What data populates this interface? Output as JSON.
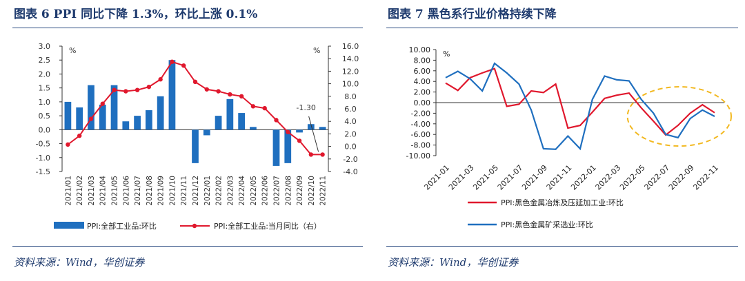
{
  "left": {
    "title": "图表 6   PPI 同比下降 1.3%，环比上涨 0.1%",
    "source": "资料来源：Wind，华创证券",
    "chart_data": {
      "type": "bar+line",
      "categories": [
        "2021/01",
        "2021/02",
        "2021/03",
        "2021/04",
        "2021/05",
        "2021/06",
        "2021/07",
        "2021/08",
        "2021/09",
        "2021/10",
        "2021/11",
        "2021/12",
        "2022/01",
        "2022/02",
        "2022/03",
        "2022/04",
        "2022/05",
        "2022/06",
        "2022/07",
        "2022/08",
        "2022/09",
        "2022/10",
        "2022/11"
      ],
      "left_unit": "%",
      "right_unit": "%",
      "ylim_left": [
        -1.5,
        3.0
      ],
      "yticks_left": [
        "3.0",
        "2.5",
        "2.0",
        "1.5",
        "1.0",
        "0.5",
        "0.0",
        "-0.5",
        "-1.0",
        "-1.5"
      ],
      "ylim_right": [
        -4.0,
        16.0
      ],
      "yticks_right": [
        "16.0",
        "14.0",
        "12.0",
        "10.0",
        "8.0",
        "6.0",
        "4.0",
        "2.0",
        "0.0",
        "-2.0",
        "-4.0"
      ],
      "series": [
        {
          "name": "PPI:全部工业品:环比",
          "type": "bar",
          "axis": "left",
          "color": "#1f6fbf",
          "values": [
            1.0,
            0.8,
            1.6,
            0.9,
            1.6,
            0.3,
            0.5,
            0.7,
            1.2,
            2.5,
            0.0,
            -1.2,
            -0.2,
            0.5,
            1.1,
            0.6,
            0.1,
            0.0,
            -1.3,
            -1.2,
            -0.1,
            0.2,
            0.1
          ]
        },
        {
          "name": "PPI:全部工业品:当月同比（右）",
          "type": "line",
          "axis": "right",
          "color": "#e0182d",
          "values": [
            0.3,
            1.7,
            4.4,
            6.8,
            9.0,
            8.8,
            9.0,
            9.5,
            10.7,
            13.5,
            12.9,
            10.3,
            9.1,
            8.8,
            8.3,
            8.0,
            6.4,
            6.1,
            4.2,
            2.3,
            0.9,
            -1.3,
            -1.3
          ]
        }
      ],
      "annotation": "-1.30",
      "legend": [
        "PPI:全部工业品:环比",
        "PPI:全部工业品:当月同比（右）"
      ]
    }
  },
  "right": {
    "title": "图表 7   黑色系行业价格持续下降",
    "source": "资料来源：Wind，华创证券",
    "chart_data": {
      "type": "line",
      "unit": "%",
      "x": [
        "2021-01",
        "2021-02",
        "2021-03",
        "2021-04",
        "2021-05",
        "2021-06",
        "2021-07",
        "2021-08",
        "2021-09",
        "2021-10",
        "2021-11",
        "2021-12",
        "2022-01",
        "2022-02",
        "2022-03",
        "2022-04",
        "2022-05",
        "2022-06",
        "2022-07",
        "2022-08",
        "2022-09",
        "2022-10",
        "2022-11"
      ],
      "xtick_labels": [
        "2021-01",
        "2021-03",
        "2021-05",
        "2021-07",
        "2021-09",
        "2021-11",
        "2022-01",
        "2022-03",
        "2022-05",
        "2022-07",
        "2022-09",
        "2022-11"
      ],
      "ylim": [
        -10.0,
        10.0
      ],
      "yticks": [
        "10.00",
        "8.00",
        "6.00",
        "4.00",
        "2.00",
        "0.00",
        "-2.00",
        "-4.00",
        "-6.00",
        "-8.00",
        "-10.00"
      ],
      "series": [
        {
          "name": "PPI:黑色金属冶炼及压延加工业:环比",
          "color": "#e0182d",
          "values": [
            3.7,
            2.3,
            4.7,
            5.6,
            6.4,
            -0.7,
            -0.3,
            2.2,
            1.9,
            3.5,
            -4.8,
            -4.3,
            -1.8,
            0.8,
            1.4,
            1.8,
            -1.0,
            -3.5,
            -6.1,
            -4.3,
            -2.0,
            -0.4,
            -1.9
          ]
        },
        {
          "name": "PPI:黑色金属矿采选业:环比",
          "color": "#1f6fbf",
          "values": [
            4.7,
            5.9,
            4.5,
            2.2,
            7.4,
            5.6,
            3.5,
            -1.4,
            -8.7,
            -8.8,
            -6.3,
            -8.7,
            0.6,
            5.0,
            4.3,
            4.1,
            0.6,
            -2.0,
            -6.0,
            -6.6,
            -3.0,
            -1.4,
            -2.6
          ]
        }
      ],
      "legend": [
        "PPI:黑色金属冶炼及压延加工业:环比",
        "PPI:黑色金属矿采选业:环比"
      ]
    }
  }
}
